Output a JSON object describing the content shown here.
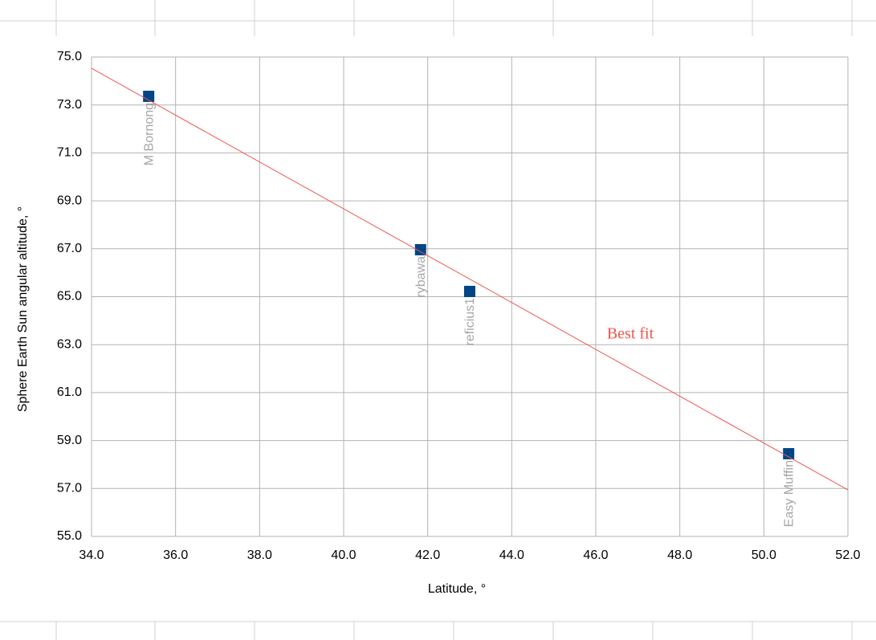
{
  "chart_data": {
    "type": "scatter",
    "xlabel": "Latitude, °",
    "ylabel": "Sphere Earth Sun angular altitude, °",
    "xlim": [
      34,
      52
    ],
    "ylim": [
      55,
      75
    ],
    "xticks": [
      {
        "value": 34,
        "label": "34.0"
      },
      {
        "value": 36,
        "label": "36.0"
      },
      {
        "value": 38,
        "label": "38.0"
      },
      {
        "value": 40,
        "label": "40.0"
      },
      {
        "value": 42,
        "label": "42.0"
      },
      {
        "value": 44,
        "label": "44.0"
      },
      {
        "value": 46,
        "label": "46.0"
      },
      {
        "value": 48,
        "label": "48.0"
      },
      {
        "value": 50,
        "label": "50.0"
      },
      {
        "value": 52,
        "label": "52.0"
      }
    ],
    "yticks": [
      {
        "value": 55,
        "label": "55.0"
      },
      {
        "value": 57,
        "label": "57.0"
      },
      {
        "value": 59,
        "label": "59.0"
      },
      {
        "value": 61,
        "label": "61.0"
      },
      {
        "value": 63,
        "label": "63.0"
      },
      {
        "value": 65,
        "label": "65.0"
      },
      {
        "value": 67,
        "label": "67.0"
      },
      {
        "value": 69,
        "label": "69.0"
      },
      {
        "value": 71,
        "label": "71.0"
      },
      {
        "value": 73,
        "label": "73.0"
      },
      {
        "value": 75,
        "label": "75.0"
      }
    ],
    "grid": true,
    "series": [
      {
        "color": "#004586",
        "marker": "square",
        "x": [
          35.36,
          41.83,
          43.0,
          50.59
        ],
        "values": [
          73.36,
          66.96,
          65.22,
          58.45
        ],
        "labels": [
          "M Bornong",
          "rybawa",
          "reficius1",
          "Easy Muffin"
        ]
      }
    ],
    "trendline": {
      "name": "Best fit",
      "color": "#f0564e",
      "x": [
        34,
        52
      ],
      "values": [
        74.53,
        56.94
      ]
    }
  }
}
